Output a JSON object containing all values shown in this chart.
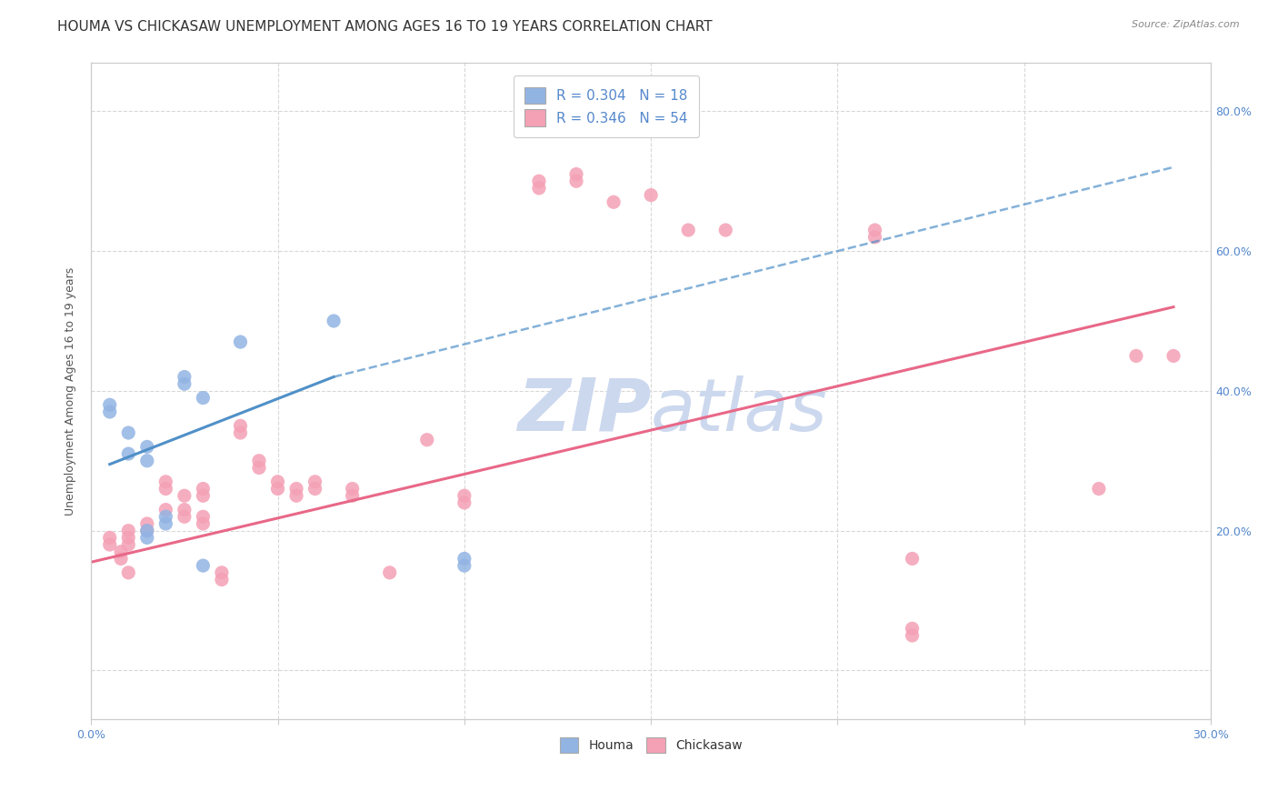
{
  "title": "HOUMA VS CHICKASAW UNEMPLOYMENT AMONG AGES 16 TO 19 YEARS CORRELATION CHART",
  "source": "Source: ZipAtlas.com",
  "ylabel": "Unemployment Among Ages 16 to 19 years",
  "xlim": [
    0.0,
    0.3
  ],
  "ylim": [
    -0.07,
    0.87
  ],
  "x_ticks": [
    0.0,
    0.05,
    0.1,
    0.15,
    0.2,
    0.25,
    0.3
  ],
  "y_ticks": [
    0.0,
    0.2,
    0.4,
    0.6,
    0.8
  ],
  "houma_R": "0.304",
  "houma_N": "18",
  "chickasaw_R": "0.346",
  "chickasaw_N": "54",
  "houma_color": "#92b4e3",
  "chickasaw_color": "#f4a0b5",
  "houma_line_color": "#5090c8",
  "chickasaw_line_color": "#e86888",
  "background_color": "#ffffff",
  "grid_color": "#d8d8d8",
  "watermark_color": "#ccd8ee",
  "houma_points": [
    [
      0.005,
      0.38
    ],
    [
      0.005,
      0.37
    ],
    [
      0.01,
      0.34
    ],
    [
      0.01,
      0.31
    ],
    [
      0.015,
      0.32
    ],
    [
      0.015,
      0.3
    ],
    [
      0.015,
      0.2
    ],
    [
      0.015,
      0.19
    ],
    [
      0.02,
      0.22
    ],
    [
      0.02,
      0.21
    ],
    [
      0.025,
      0.42
    ],
    [
      0.025,
      0.41
    ],
    [
      0.03,
      0.39
    ],
    [
      0.03,
      0.15
    ],
    [
      0.04,
      0.47
    ],
    [
      0.065,
      0.5
    ],
    [
      0.1,
      0.16
    ],
    [
      0.1,
      0.15
    ]
  ],
  "chickasaw_points": [
    [
      0.005,
      0.19
    ],
    [
      0.005,
      0.18
    ],
    [
      0.008,
      0.17
    ],
    [
      0.008,
      0.16
    ],
    [
      0.01,
      0.2
    ],
    [
      0.01,
      0.19
    ],
    [
      0.01,
      0.18
    ],
    [
      0.01,
      0.14
    ],
    [
      0.015,
      0.21
    ],
    [
      0.015,
      0.2
    ],
    [
      0.02,
      0.27
    ],
    [
      0.02,
      0.26
    ],
    [
      0.02,
      0.23
    ],
    [
      0.025,
      0.25
    ],
    [
      0.025,
      0.23
    ],
    [
      0.025,
      0.22
    ],
    [
      0.03,
      0.26
    ],
    [
      0.03,
      0.25
    ],
    [
      0.03,
      0.22
    ],
    [
      0.03,
      0.21
    ],
    [
      0.035,
      0.14
    ],
    [
      0.035,
      0.13
    ],
    [
      0.04,
      0.35
    ],
    [
      0.04,
      0.34
    ],
    [
      0.045,
      0.3
    ],
    [
      0.045,
      0.29
    ],
    [
      0.05,
      0.27
    ],
    [
      0.05,
      0.26
    ],
    [
      0.055,
      0.26
    ],
    [
      0.055,
      0.25
    ],
    [
      0.06,
      0.27
    ],
    [
      0.06,
      0.26
    ],
    [
      0.07,
      0.26
    ],
    [
      0.07,
      0.25
    ],
    [
      0.08,
      0.14
    ],
    [
      0.09,
      0.33
    ],
    [
      0.1,
      0.25
    ],
    [
      0.1,
      0.24
    ],
    [
      0.12,
      0.7
    ],
    [
      0.12,
      0.69
    ],
    [
      0.13,
      0.71
    ],
    [
      0.13,
      0.7
    ],
    [
      0.14,
      0.67
    ],
    [
      0.15,
      0.68
    ],
    [
      0.16,
      0.63
    ],
    [
      0.17,
      0.63
    ],
    [
      0.21,
      0.63
    ],
    [
      0.21,
      0.62
    ],
    [
      0.22,
      0.16
    ],
    [
      0.22,
      0.06
    ],
    [
      0.22,
      0.05
    ],
    [
      0.27,
      0.26
    ],
    [
      0.28,
      0.45
    ],
    [
      0.29,
      0.45
    ]
  ],
  "houma_trendline_solid": [
    [
      0.005,
      0.295
    ],
    [
      0.065,
      0.42
    ]
  ],
  "houma_trendline_dashed": [
    [
      0.065,
      0.42
    ],
    [
      0.29,
      0.72
    ]
  ],
  "chickasaw_trendline": [
    [
      0.0,
      0.155
    ],
    [
      0.29,
      0.52
    ]
  ],
  "title_fontsize": 11,
  "axis_label_fontsize": 9,
  "tick_fontsize": 9,
  "legend_fontsize": 11
}
